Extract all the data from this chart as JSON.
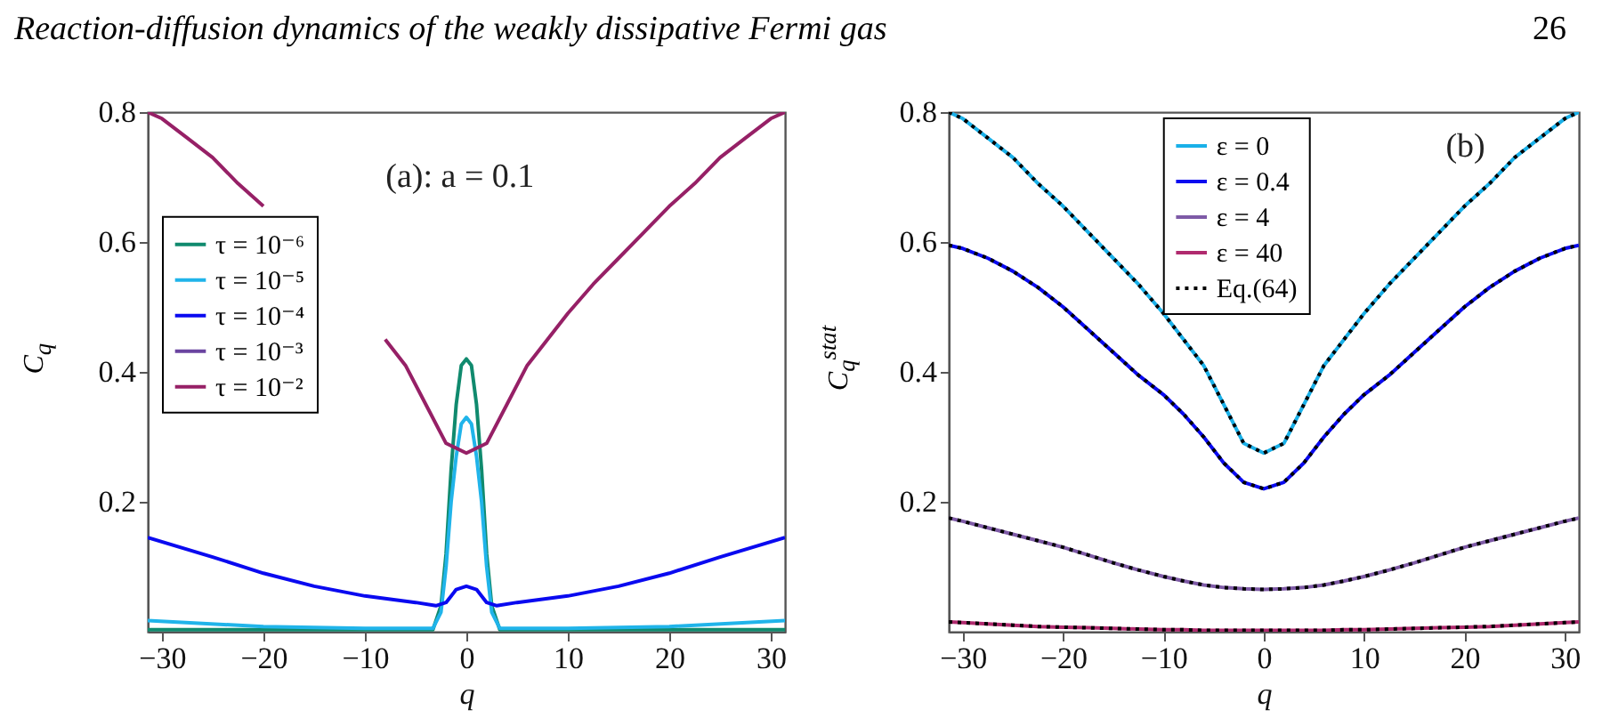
{
  "chart_data": [
    {
      "type": "line",
      "title": "Reaction-diffusion dynamics of the weakly dissipative Fermi gas",
      "xlabel": "q",
      "ylabel": "C$_{q}$",
      "annotations": [
        "(a): a = 0.1"
      ],
      "xlim": [
        -31.4,
        31.4
      ],
      "xticks": [
        -30,
        -20,
        -10,
        0,
        10,
        20,
        30
      ],
      "ylim": [
        0,
        0.8
      ],
      "yticks": [
        0.2,
        0.4,
        0.6,
        0.8
      ],
      "legend": "top left",
      "series": [
        {
          "name": "τ = 10⁻⁶",
          "color": "#108a6e",
          "x": [
            -31.4,
            -3.3,
            -2.5,
            -2,
            -1.5,
            -1,
            -0.5,
            0,
            0.5,
            1,
            1.5,
            2,
            2.5,
            3.3,
            31.4
          ],
          "values": [
            0.003,
            0.003,
            0.04,
            0.12,
            0.25,
            0.35,
            0.41,
            0.42,
            0.41,
            0.35,
            0.25,
            0.12,
            0.04,
            0.003,
            0.003
          ]
        },
        {
          "name": "τ = 10⁻⁵",
          "color": "#20b4ea",
          "x": [
            -31.4,
            -20,
            -10,
            -3.3,
            -2.5,
            -2,
            -1.5,
            -1,
            -0.5,
            0,
            0.5,
            1,
            1.5,
            2,
            2.5,
            3.3,
            10,
            20,
            31.4
          ],
          "values": [
            0.017,
            0.008,
            0.005,
            0.005,
            0.03,
            0.1,
            0.2,
            0.27,
            0.32,
            0.33,
            0.32,
            0.27,
            0.2,
            0.1,
            0.03,
            0.005,
            0.005,
            0.008,
            0.017
          ]
        },
        {
          "name": "τ = 10⁻⁴",
          "color": "#0a0af0",
          "x": [
            -31.4,
            -25,
            -20,
            -15,
            -10,
            -5,
            -3,
            -2,
            -1,
            0,
            1,
            2,
            3,
            5,
            10,
            15,
            20,
            25,
            31.4
          ],
          "values": [
            0.145,
            0.115,
            0.09,
            0.07,
            0.055,
            0.045,
            0.04,
            0.045,
            0.065,
            0.07,
            0.065,
            0.045,
            0.04,
            0.045,
            0.055,
            0.07,
            0.09,
            0.115,
            0.145
          ]
        },
        {
          "name": "τ = 10⁻³",
          "color": "#6a44a0"
        },
        {
          "name": "τ = 10⁻²",
          "color": "#962066",
          "x": [
            -31.4,
            -30,
            -27.5,
            -25,
            -22.5,
            -20,
            -17.5,
            -15,
            -12.5,
            -10,
            -8,
            -6,
            -4,
            -2,
            0,
            2,
            4,
            6,
            8,
            10,
            12.5,
            15,
            17.5,
            20,
            22.5,
            25,
            27.5,
            30,
            31.4
          ],
          "values": [
            0.8,
            0.79,
            0.76,
            0.73,
            0.69,
            0.655,
            null,
            null,
            null,
            null,
            0.45,
            0.41,
            0.35,
            0.29,
            0.275,
            0.29,
            0.35,
            0.41,
            0.45,
            0.49,
            0.535,
            0.575,
            0.615,
            0.655,
            0.69,
            0.73,
            0.76,
            0.79,
            0.8
          ]
        }
      ]
    },
    {
      "type": "line",
      "title": "26",
      "xlabel": "q",
      "ylabel": "C$_{q}$$^{stat}$",
      "annotations": [
        "(b)"
      ],
      "xlim": [
        -31.4,
        31.4
      ],
      "xticks": [
        -30,
        -20,
        -10,
        0,
        10,
        20,
        30
      ],
      "ylim": [
        0,
        0.8
      ],
      "yticks": [
        0.2,
        0.4,
        0.6,
        0.8
      ],
      "legend": "top",
      "x": [
        -31.4,
        -30,
        -27.5,
        -25,
        -22.5,
        -20,
        -17.5,
        -15,
        -12.5,
        -10,
        -8,
        -6,
        -4,
        -2,
        0,
        2,
        4,
        6,
        8,
        10,
        12.5,
        15,
        17.5,
        20,
        22.5,
        25,
        27.5,
        30,
        31.4
      ],
      "series": [
        {
          "name": "ε = 0",
          "color": "#1ab0e8",
          "values": [
            0.8,
            0.79,
            0.76,
            0.73,
            0.69,
            0.655,
            0.615,
            0.575,
            0.535,
            0.49,
            0.45,
            0.41,
            0.35,
            0.29,
            0.275,
            0.29,
            0.35,
            0.41,
            0.45,
            0.49,
            0.535,
            0.575,
            0.615,
            0.655,
            0.69,
            0.73,
            0.76,
            0.79,
            0.8
          ]
        },
        {
          "name": "ε = 0.4",
          "color": "#0a0af0",
          "values": [
            0.595,
            0.59,
            0.575,
            0.555,
            0.53,
            0.5,
            0.465,
            0.43,
            0.395,
            0.365,
            0.335,
            0.3,
            0.26,
            0.23,
            0.22,
            0.23,
            0.26,
            0.3,
            0.335,
            0.365,
            0.395,
            0.43,
            0.465,
            0.5,
            0.53,
            0.555,
            0.575,
            0.59,
            0.595
          ]
        },
        {
          "name": "ε = 4",
          "color": "#7e5aa6",
          "values": [
            0.175,
            0.17,
            0.16,
            0.15,
            0.14,
            0.13,
            0.118,
            0.106,
            0.095,
            0.085,
            0.078,
            0.072,
            0.068,
            0.066,
            0.065,
            0.066,
            0.068,
            0.072,
            0.078,
            0.085,
            0.095,
            0.106,
            0.118,
            0.13,
            0.14,
            0.15,
            0.16,
            0.17,
            0.175
          ]
        },
        {
          "name": "ε = 40",
          "color": "#b02a6e",
          "values": [
            0.015,
            0.014,
            0.012,
            0.01,
            0.008,
            0.007,
            0.006,
            0.005,
            0.004,
            0.003,
            0.003,
            0.002,
            0.002,
            0.002,
            0.002,
            0.002,
            0.002,
            0.002,
            0.003,
            0.003,
            0.004,
            0.005,
            0.006,
            0.007,
            0.008,
            0.01,
            0.012,
            0.014,
            0.015
          ]
        },
        {
          "name": "Eq.(64)",
          "color": "#000000",
          "line_style": "dotted",
          "values": [
            0.8,
            0.79,
            0.76,
            0.73,
            0.69,
            0.655,
            0.615,
            0.575,
            0.535,
            0.49,
            0.45,
            0.41,
            0.35,
            0.29,
            0.275,
            0.29,
            0.35,
            0.41,
            0.45,
            0.49,
            0.535,
            0.575,
            0.615,
            0.655,
            0.69,
            0.73,
            0.76,
            0.79,
            0.8
          ]
        },
        {
          "color": "#000000",
          "line_style": "dotted",
          "values": [
            0.595,
            0.59,
            0.575,
            0.555,
            0.53,
            0.5,
            0.465,
            0.43,
            0.395,
            0.365,
            0.335,
            0.3,
            0.26,
            0.23,
            0.22,
            0.23,
            0.26,
            0.3,
            0.335,
            0.365,
            0.395,
            0.43,
            0.465,
            0.5,
            0.53,
            0.555,
            0.575,
            0.59,
            0.595
          ]
        },
        {
          "color": "#000000",
          "line_style": "dotted",
          "values": [
            0.175,
            0.17,
            0.16,
            0.15,
            0.14,
            0.13,
            0.118,
            0.106,
            0.095,
            0.085,
            0.078,
            0.072,
            0.068,
            0.066,
            0.065,
            0.066,
            0.068,
            0.072,
            0.078,
            0.085,
            0.095,
            0.106,
            0.118,
            0.13,
            0.14,
            0.15,
            0.16,
            0.17,
            0.175
          ]
        },
        {
          "color": "#000000",
          "line_style": "dotted",
          "values": [
            0.015,
            0.014,
            0.012,
            0.01,
            0.008,
            0.007,
            0.006,
            0.005,
            0.004,
            0.003,
            0.003,
            0.002,
            0.002,
            0.002,
            0.002,
            0.002,
            0.002,
            0.002,
            0.003,
            0.003,
            0.004,
            0.005,
            0.006,
            0.007,
            0.008,
            0.01,
            0.012,
            0.014,
            0.015
          ]
        }
      ]
    }
  ]
}
